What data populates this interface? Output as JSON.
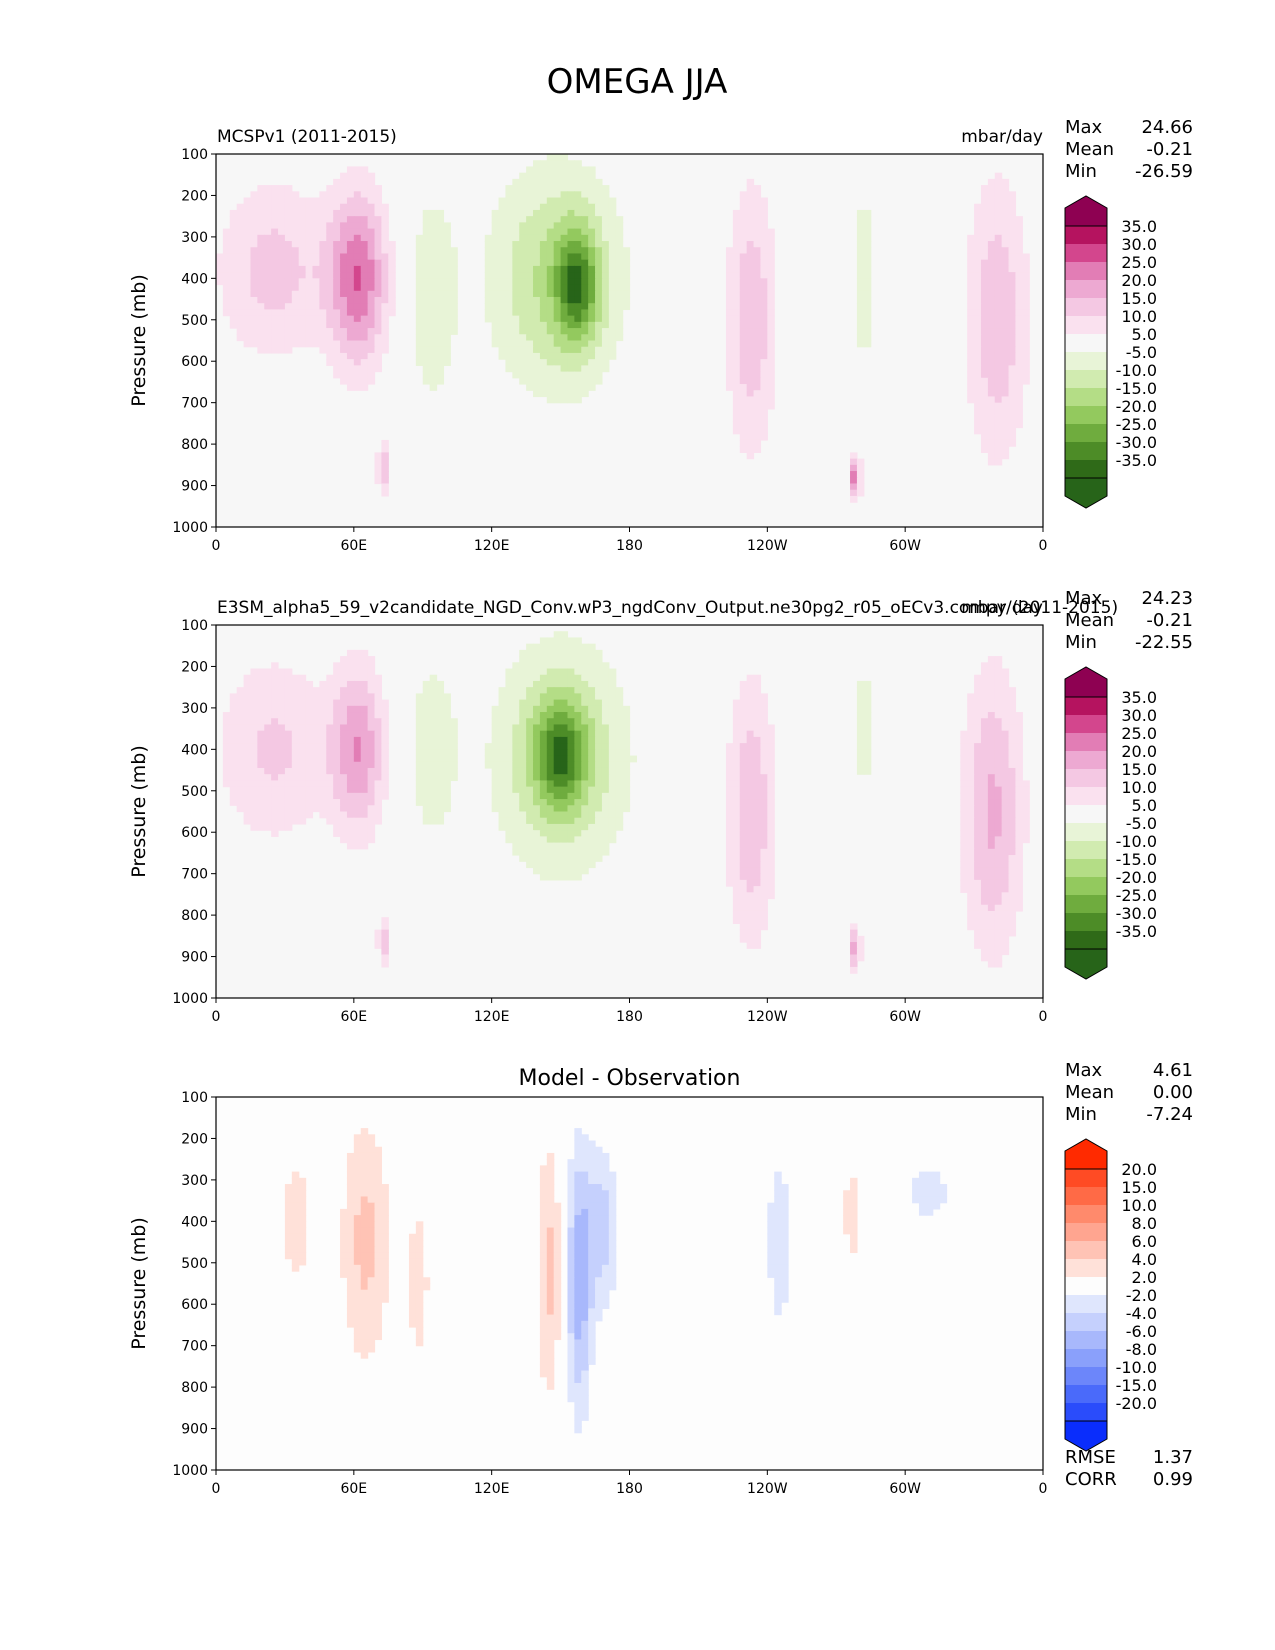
{
  "figure_title": "OMEGA JJA",
  "panels": [
    {
      "id": "test",
      "title_left": "MCSPv1 (2011-2015)",
      "title_center": "",
      "title_right": "mbar/day",
      "stats": [
        {
          "label": "Max",
          "value": "24.66"
        },
        {
          "label": "Mean",
          "value": "-0.21"
        },
        {
          "label": "Min",
          "value": "-26.59"
        }
      ],
      "extra_stats": [],
      "colorbar": "omega",
      "field": "test"
    },
    {
      "id": "reference",
      "title_left": "E3SM_alpha5_59_v2candidate_NGD_Conv.wP3_ngdConv_Output.ne30pg2_r05_oECv3.compy (2011-2015)",
      "title_center": "",
      "title_right": "mbar/day",
      "stats": [
        {
          "label": "Max",
          "value": "24.23"
        },
        {
          "label": "Mean",
          "value": "-0.21"
        },
        {
          "label": "Min",
          "value": "-22.55"
        }
      ],
      "extra_stats": [],
      "colorbar": "omega",
      "field": "ref"
    },
    {
      "id": "difference",
      "title_left": "",
      "title_center": "Model - Observation",
      "title_right": "",
      "stats": [
        {
          "label": "Max",
          "value": "4.61"
        },
        {
          "label": "Mean",
          "value": "0.00"
        },
        {
          "label": "Min",
          "value": "-7.24"
        }
      ],
      "extra_stats": [
        {
          "label": "RMSE",
          "value": "1.37"
        },
        {
          "label": "CORR",
          "value": "0.99"
        }
      ],
      "colorbar": "diff",
      "field": "diff"
    }
  ],
  "axes": {
    "ylabel": "Pressure (mb)",
    "yticks": [
      "100",
      "200",
      "300",
      "400",
      "500",
      "600",
      "700",
      "800",
      "900",
      "1000"
    ],
    "xticks": [
      "0",
      "60E",
      "120E",
      "180",
      "120W",
      "60W",
      "0"
    ]
  },
  "colorbars": {
    "omega": {
      "labels": [
        "35.0",
        "30.0",
        "25.0",
        "20.0",
        "15.0",
        "10.0",
        "5.0",
        "-5.0",
        "-10.0",
        "-15.0",
        "-20.0",
        "-25.0",
        "-30.0",
        "-35.0"
      ],
      "colors": [
        "#8e0152",
        "#b5135f",
        "#d3468d",
        "#e27db5",
        "#eda9d2",
        "#f4c8e3",
        "#fae1ef",
        "#f7f7f7",
        "#e8f4d7",
        "#d1ebb0",
        "#b4dd86",
        "#93c95e",
        "#6fac3e",
        "#4d8c27",
        "#2f6a18",
        "#276419"
      ]
    },
    "diff": {
      "labels": [
        "20.0",
        "15.0",
        "10.0",
        "8.0",
        "6.0",
        "4.0",
        "2.0",
        "-2.0",
        "-4.0",
        "-6.0",
        "-8.0",
        "-10.0",
        "-15.0",
        "-20.0"
      ],
      "colors": [
        "#ff2a00",
        "#ff4b24",
        "#ff6a46",
        "#ff8a6c",
        "#ffa590",
        "#ffc3b5",
        "#ffe1d9",
        "#fdfdfd",
        "#dfe6fd",
        "#c5d0fd",
        "#a8b8fc",
        "#8aa0fb",
        "#6c86fa",
        "#4a6afa",
        "#2a4cfb",
        "#0a2dfc"
      ]
    }
  },
  "chart_data": [
    {
      "type": "heatmap",
      "title": "MCSPv1 (2011-2015)",
      "units": "mbar/day",
      "xlabel": "",
      "ylabel": "Pressure (mb)",
      "x_range_deg": [
        0,
        360
      ],
      "y_range_mb": [
        100,
        1000
      ],
      "features": [
        {
          "sign": "positive",
          "lon_center": 25,
          "p_center": 380,
          "lon_halfwidth": 28,
          "p_halfwidth": 240,
          "peak": 12
        },
        {
          "sign": "positive",
          "lon_center": 62,
          "p_center": 400,
          "lon_halfwidth": 14,
          "p_halfwidth": 230,
          "peak": 24
        },
        {
          "sign": "negative",
          "lon_center": 94,
          "p_center": 450,
          "lon_halfwidth": 12,
          "p_halfwidth": 300,
          "peak": -9
        },
        {
          "sign": "negative",
          "lon_center": 148,
          "p_center": 400,
          "lon_halfwidth": 32,
          "p_halfwidth": 300,
          "peak": -16
        },
        {
          "sign": "negative",
          "lon_center": 157,
          "p_center": 420,
          "lon_halfwidth": 10,
          "p_halfwidth": 150,
          "peak": -24
        },
        {
          "sign": "positive",
          "lon_center": 233,
          "p_center": 500,
          "lon_halfwidth": 12,
          "p_halfwidth": 360,
          "peak": 14
        },
        {
          "sign": "negative",
          "lon_center": 282,
          "p_center": 400,
          "lon_halfwidth": 5,
          "p_halfwidth": 300,
          "peak": -8
        },
        {
          "sign": "positive",
          "lon_center": 278,
          "p_center": 880,
          "lon_halfwidth": 3,
          "p_halfwidth": 60,
          "peak": 22
        },
        {
          "sign": "positive",
          "lon_center": 340,
          "p_center": 500,
          "lon_halfwidth": 15,
          "p_halfwidth": 380,
          "peak": 14
        },
        {
          "sign": "positive",
          "lon_center": 73,
          "p_center": 860,
          "lon_halfwidth": 3,
          "p_halfwidth": 70,
          "peak": 15
        }
      ],
      "stats": {
        "max": 24.66,
        "mean": -0.21,
        "min": -26.59
      }
    },
    {
      "type": "heatmap",
      "title": "E3SM_alpha5_59_v2candidate_NGD_Conv.wP3_ngdConv_Output.ne30pg2_r05_oECv3.compy (2011-2015)",
      "units": "mbar/day",
      "xlabel": "",
      "ylabel": "Pressure (mb)",
      "x_range_deg": [
        0,
        360
      ],
      "y_range_mb": [
        100,
        1000
      ],
      "features": [
        {
          "sign": "positive",
          "lon_center": 25,
          "p_center": 400,
          "lon_halfwidth": 28,
          "p_halfwidth": 250,
          "peak": 11
        },
        {
          "sign": "positive",
          "lon_center": 62,
          "p_center": 400,
          "lon_halfwidth": 13,
          "p_halfwidth": 220,
          "peak": 19
        },
        {
          "sign": "negative",
          "lon_center": 94,
          "p_center": 400,
          "lon_halfwidth": 12,
          "p_halfwidth": 250,
          "peak": -9
        },
        {
          "sign": "negative",
          "lon_center": 150,
          "p_center": 420,
          "lon_halfwidth": 32,
          "p_halfwidth": 300,
          "peak": -16
        },
        {
          "sign": "negative",
          "lon_center": 150,
          "p_center": 410,
          "lon_halfwidth": 12,
          "p_halfwidth": 140,
          "peak": -22
        },
        {
          "sign": "positive",
          "lon_center": 233,
          "p_center": 550,
          "lon_halfwidth": 12,
          "p_halfwidth": 360,
          "peak": 14
        },
        {
          "sign": "negative",
          "lon_center": 282,
          "p_center": 350,
          "lon_halfwidth": 5,
          "p_halfwidth": 200,
          "peak": -8
        },
        {
          "sign": "positive",
          "lon_center": 278,
          "p_center": 880,
          "lon_halfwidth": 3,
          "p_halfwidth": 60,
          "peak": 18
        },
        {
          "sign": "positive",
          "lon_center": 338,
          "p_center": 550,
          "lon_halfwidth": 15,
          "p_halfwidth": 380,
          "peak": 16
        },
        {
          "sign": "positive",
          "lon_center": 73,
          "p_center": 860,
          "lon_halfwidth": 3,
          "p_halfwidth": 70,
          "peak": 13
        }
      ],
      "stats": {
        "max": 24.23,
        "mean": -0.21,
        "min": -22.55
      }
    },
    {
      "type": "heatmap",
      "title": "Model - Observation",
      "units": "mbar/day",
      "xlabel": "",
      "ylabel": "Pressure (mb)",
      "x_range_deg": [
        0,
        360
      ],
      "y_range_mb": [
        100,
        1000
      ],
      "features": [
        {
          "sign": "positive",
          "lon_center": 35,
          "p_center": 400,
          "lon_halfwidth": 8,
          "p_halfwidth": 220,
          "peak": 3
        },
        {
          "sign": "positive",
          "lon_center": 65,
          "p_center": 450,
          "lon_halfwidth": 12,
          "p_halfwidth": 330,
          "peak": 4.6
        },
        {
          "sign": "positive",
          "lon_center": 88,
          "p_center": 550,
          "lon_halfwidth": 6,
          "p_halfwidth": 250,
          "peak": 3
        },
        {
          "sign": "positive",
          "lon_center": 145,
          "p_center": 520,
          "lon_halfwidth": 6,
          "p_halfwidth": 350,
          "peak": 4.5
        },
        {
          "sign": "negative",
          "lon_center": 158,
          "p_center": 550,
          "lon_halfwidth": 6,
          "p_halfwidth": 350,
          "peak": -7.2
        },
        {
          "sign": "negative",
          "lon_center": 168,
          "p_center": 420,
          "lon_halfwidth": 8,
          "p_halfwidth": 220,
          "peak": -5
        },
        {
          "sign": "negative",
          "lon_center": 245,
          "p_center": 450,
          "lon_halfwidth": 7,
          "p_halfwidth": 300,
          "peak": -3
        },
        {
          "sign": "positive",
          "lon_center": 277,
          "p_center": 380,
          "lon_halfwidth": 4,
          "p_halfwidth": 120,
          "peak": 4
        },
        {
          "sign": "negative",
          "lon_center": 310,
          "p_center": 330,
          "lon_halfwidth": 12,
          "p_halfwidth": 90,
          "peak": -3
        },
        {
          "sign": "positive",
          "lon_center": 282,
          "p_center": 750,
          "lon_halfwidth": 3,
          "p_halfwidth": 180,
          "peak": 2.5
        }
      ],
      "stats": {
        "max": 4.61,
        "mean": 0.0,
        "min": -7.24,
        "rmse": 1.37,
        "corr": 0.99
      }
    }
  ]
}
